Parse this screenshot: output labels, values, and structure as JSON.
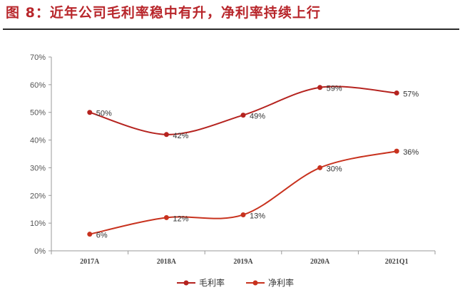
{
  "header": {
    "title": "图 8：近年公司毛利率稳中有升，净利率持续上行"
  },
  "colors": {
    "title": "#b8262b",
    "series_gross": "#b5231f",
    "series_net": "#c8321e"
  },
  "chart_data": {
    "type": "line",
    "title": "",
    "xlabel": "",
    "ylabel": "",
    "categories": [
      "2017A",
      "2018A",
      "2019A",
      "2020A",
      "2021Q1"
    ],
    "yticks": [
      "0%",
      "10%",
      "20%",
      "30%",
      "40%",
      "50%",
      "60%",
      "70%"
    ],
    "ylim": [
      0,
      70
    ],
    "grid": false,
    "legend": "bottom",
    "series": [
      {
        "name": "毛利率",
        "values": [
          50,
          42,
          49,
          59,
          57
        ],
        "labels": [
          "50%",
          "42%",
          "49%",
          "59%",
          "57%"
        ]
      },
      {
        "name": "净利率",
        "values": [
          6,
          12,
          13,
          30,
          36
        ],
        "labels": [
          "6%",
          "12%",
          "13%",
          "30%",
          "36%"
        ]
      }
    ]
  }
}
